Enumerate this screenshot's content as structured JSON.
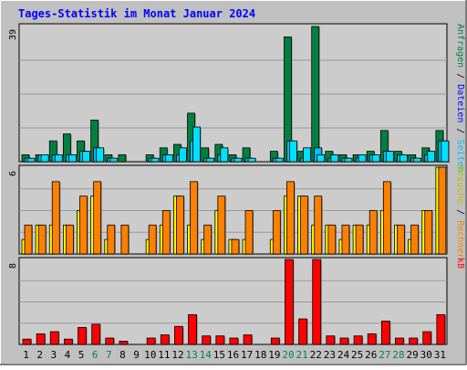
{
  "title": "Tages-Statistik im Monat Januar 2024",
  "colors": {
    "background": "#c0c0c0",
    "plot_bg": "#cccccc",
    "grid": "#999999",
    "hits": "#008040",
    "files": "#00c0ff",
    "pages": "#00e0ff",
    "visits": "#ffff00",
    "sites": "#ff8000",
    "kbytes": "#ff0000",
    "title": "#0000ff",
    "weekend_label": "#00805c"
  },
  "chart_data": [
    {
      "type": "bar",
      "panel": "top",
      "ymax_label": "39",
      "ylim": [
        0,
        39
      ],
      "right_label_parts": [
        {
          "text": "Anfragen",
          "color": "#008040"
        },
        {
          "text": " / ",
          "color": "#000000"
        },
        {
          "text": "Dateien",
          "color": "#0000ff"
        },
        {
          "text": " / ",
          "color": "#000000"
        },
        {
          "text": "Seiten",
          "color": "#00c0ff"
        }
      ],
      "series": [
        {
          "name": "Anfragen",
          "values": [
            2,
            2,
            6,
            8,
            6,
            12,
            2,
            2,
            0,
            2,
            4,
            5,
            14,
            4,
            5,
            2,
            4,
            0,
            3,
            36,
            3,
            39,
            3,
            2,
            2,
            3,
            9,
            3,
            2,
            4,
            9
          ]
        },
        {
          "name": "Dateien",
          "values": [
            1,
            2,
            2,
            2,
            3,
            4,
            1,
            0,
            0,
            1,
            2,
            2,
            6,
            1,
            2,
            1,
            1,
            0,
            1,
            6,
            1,
            4,
            1,
            1,
            1,
            2,
            3,
            2,
            1,
            2,
            6
          ]
        },
        {
          "name": "Seiten",
          "values": [
            1,
            2,
            2,
            2,
            3,
            4,
            1,
            0,
            0,
            1,
            2,
            4,
            10,
            1,
            4,
            1,
            1,
            0,
            1,
            6,
            4,
            2,
            2,
            1,
            2,
            2,
            3,
            2,
            1,
            3,
            6
          ]
        }
      ]
    },
    {
      "type": "bar",
      "panel": "middle",
      "ymax_label": "6",
      "ylim": [
        0,
        6
      ],
      "right_label_parts": [
        {
          "text": "Besuche",
          "color": "#c0c000"
        },
        {
          "text": " / ",
          "color": "#000000"
        },
        {
          "text": "Rechner",
          "color": "#ff8000"
        }
      ],
      "series": [
        {
          "name": "Besuche",
          "values": [
            1,
            2,
            2,
            2,
            3,
            4,
            1,
            0,
            0,
            1,
            2,
            4,
            2,
            1,
            3,
            1,
            1,
            0,
            1,
            4,
            4,
            2,
            2,
            1,
            2,
            2,
            3,
            2,
            1,
            3,
            6
          ]
        },
        {
          "name": "Rechner",
          "values": [
            2,
            2,
            5,
            2,
            4,
            5,
            2,
            2,
            0,
            2,
            3,
            4,
            5,
            2,
            4,
            1,
            3,
            0,
            3,
            5,
            4,
            4,
            2,
            2,
            2,
            3,
            5,
            2,
            2,
            3,
            6
          ]
        }
      ]
    },
    {
      "type": "bar",
      "panel": "bottom",
      "ymax_label": "8",
      "ylim": [
        0,
        8
      ],
      "right_label_parts": [
        {
          "text": "kB",
          "color": "#ff0000"
        }
      ],
      "series": [
        {
          "name": "kB",
          "values": [
            0.5,
            1,
            1.2,
            0.5,
            1.6,
            1.9,
            0.6,
            0.3,
            0,
            0.6,
            0.9,
            1.7,
            2.8,
            0.8,
            0.8,
            0.6,
            0.9,
            0,
            0.6,
            8,
            2.4,
            8,
            0.8,
            0.6,
            0.8,
            1,
            2.2,
            0.6,
            0.6,
            1.2,
            2.8
          ]
        }
      ]
    }
  ],
  "days": [
    "1",
    "2",
    "3",
    "4",
    "5",
    "6",
    "7",
    "8",
    "9",
    "10",
    "11",
    "12",
    "13",
    "14",
    "15",
    "16",
    "17",
    "18",
    "19",
    "20",
    "21",
    "22",
    "23",
    "24",
    "25",
    "26",
    "27",
    "28",
    "29",
    "30",
    "31"
  ],
  "weekend_days": [
    6,
    7,
    13,
    14,
    20,
    21,
    27,
    28
  ]
}
